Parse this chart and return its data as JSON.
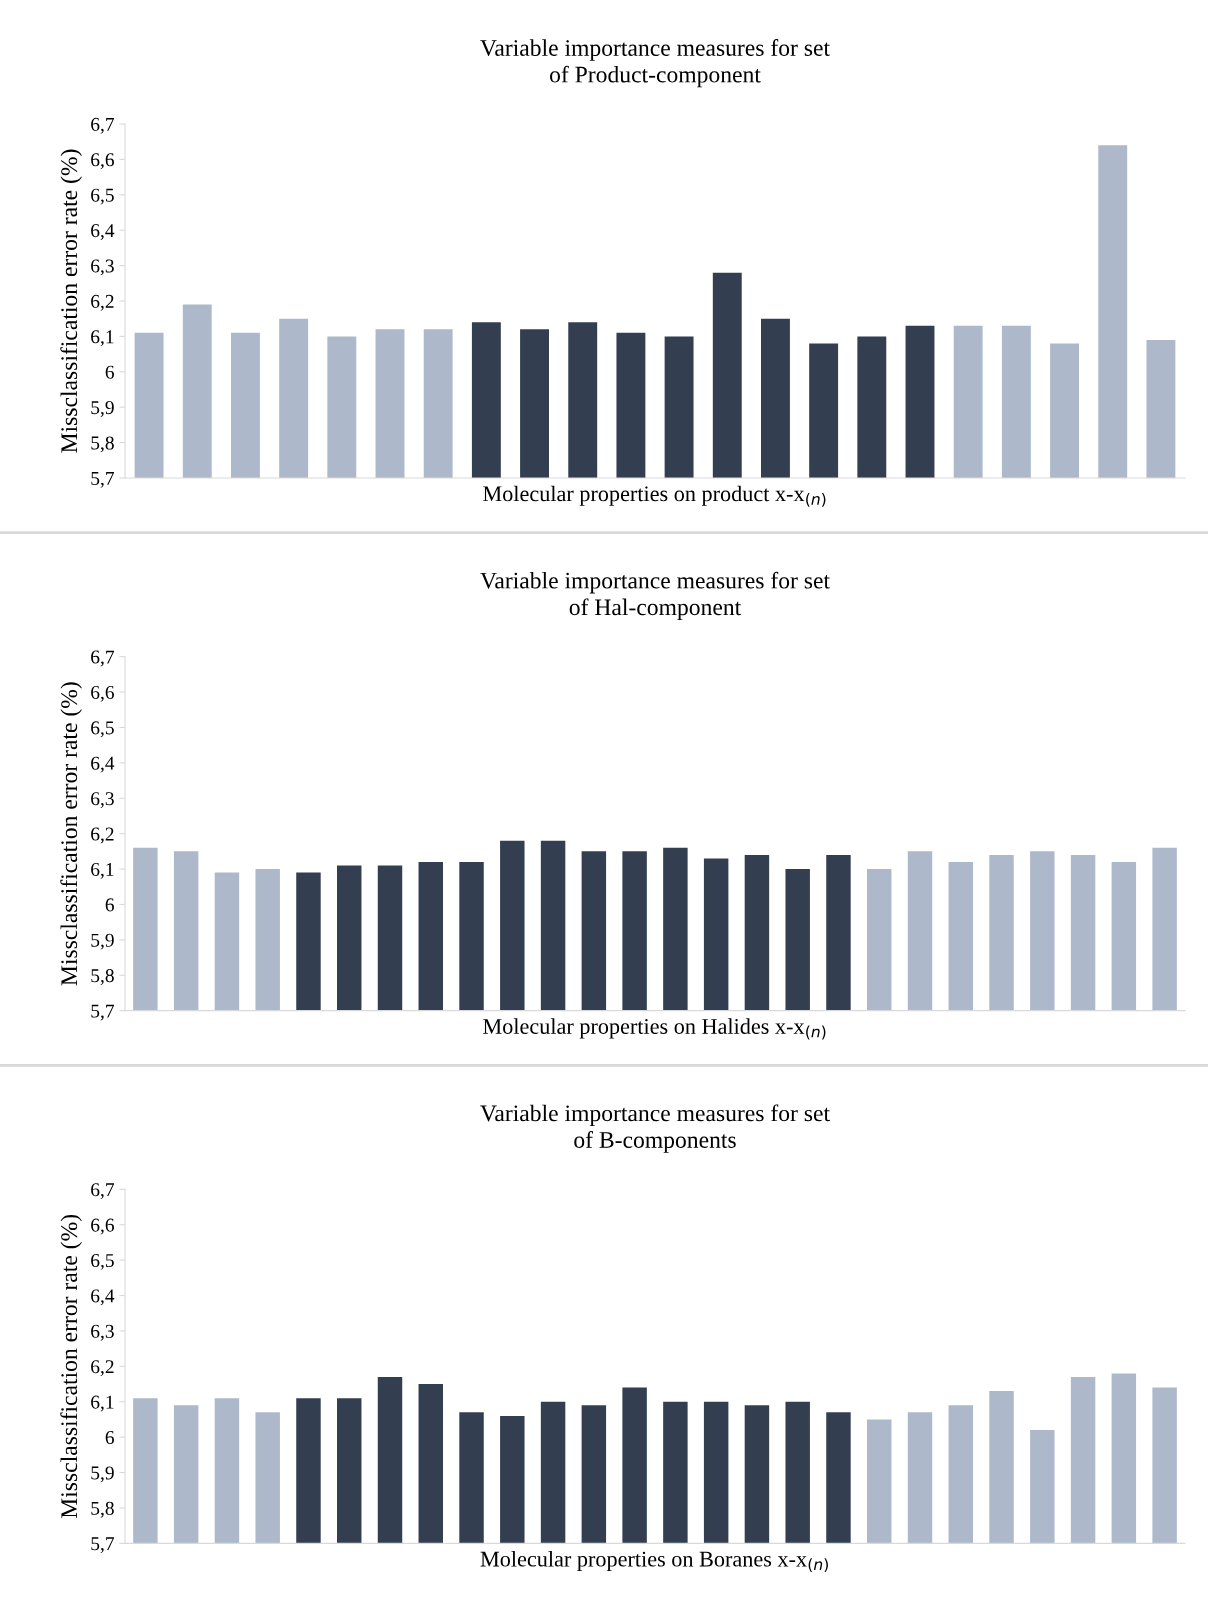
{
  "chart_data": [
    {
      "type": "bar",
      "title": "Variable importance measures for set\nof Product-component",
      "xlabel": "Molecular properties on product x-x$_{(n)}$",
      "ylabel": "Missclassification error rate (%)",
      "categories": [
        null,
        null,
        null,
        null,
        null,
        null,
        null,
        null,
        null,
        null,
        null,
        null,
        null,
        null,
        null,
        null,
        null,
        null,
        null,
        null,
        null,
        null
      ],
      "values": [
        6.11,
        6.19,
        6.11,
        6.15,
        6.1,
        6.12,
        6.12,
        6.14,
        6.12,
        6.14,
        6.11,
        6.1,
        6.28,
        6.15,
        6.08,
        6.1,
        6.13,
        6.13,
        6.13,
        6.08,
        6.64,
        6.09
      ],
      "colors": [
        "#adb9ca",
        "#adb9ca",
        "#adb9ca",
        "#adb9ca",
        "#adb9ca",
        "#adb9ca",
        "#adb9ca",
        "#333f50",
        "#333f50",
        "#333f50",
        "#333f50",
        "#333f50",
        "#333f50",
        "#333f50",
        "#333f50",
        "#333f50",
        "#333f50",
        "#adb9ca",
        "#adb9ca",
        "#adb9ca",
        "#adb9ca",
        "#adb9ca"
      ],
      "ylim": [
        5.7,
        6.7
      ],
      "yticks": [
        {
          "value": 5.7,
          "label": "5,7"
        },
        {
          "value": 5.8,
          "label": "5,8"
        },
        {
          "value": 5.9,
          "label": "5,9"
        },
        {
          "value": 6.0,
          "label": "6"
        },
        {
          "value": 6.1,
          "label": "6,1"
        },
        {
          "value": 6.2,
          "label": "6,2"
        },
        {
          "value": 6.3,
          "label": "6,3"
        },
        {
          "value": 6.4,
          "label": "6,4"
        },
        {
          "value": 6.5,
          "label": "6,5"
        },
        {
          "value": 6.6,
          "label": "6,6"
        },
        {
          "value": 6.7,
          "label": "6,7"
        }
      ],
      "grid": false,
      "legend": false
    },
    {
      "type": "bar",
      "title": "Variable importance measures for set\nof Hal-component",
      "xlabel": "Molecular properties on Halides x-x$_{(n)}$",
      "ylabel": "Missclassification error rate (%)",
      "categories": [
        null,
        null,
        null,
        null,
        null,
        null,
        null,
        null,
        null,
        null,
        null,
        null,
        null,
        null,
        null,
        null,
        null,
        null,
        null,
        null,
        null,
        null,
        null,
        null,
        null,
        null
      ],
      "values": [
        6.16,
        6.15,
        6.09,
        6.1,
        6.09,
        6.11,
        6.11,
        6.12,
        6.12,
        6.18,
        6.18,
        6.15,
        6.15,
        6.16,
        6.13,
        6.14,
        6.1,
        6.14,
        6.1,
        6.15,
        6.12,
        6.14,
        6.15,
        6.14,
        6.12,
        6.16
      ],
      "colors": [
        "#adb9ca",
        "#adb9ca",
        "#adb9ca",
        "#adb9ca",
        "#333f50",
        "#333f50",
        "#333f50",
        "#333f50",
        "#333f50",
        "#333f50",
        "#333f50",
        "#333f50",
        "#333f50",
        "#333f50",
        "#333f50",
        "#333f50",
        "#333f50",
        "#333f50",
        "#adb9ca",
        "#adb9ca",
        "#adb9ca",
        "#adb9ca",
        "#adb9ca",
        "#adb9ca",
        "#adb9ca",
        "#adb9ca"
      ],
      "ylim": [
        5.7,
        6.7
      ],
      "yticks": [
        {
          "value": 5.7,
          "label": "5,7"
        },
        {
          "value": 5.8,
          "label": "5,8"
        },
        {
          "value": 5.9,
          "label": "5,9"
        },
        {
          "value": 6.0,
          "label": "6"
        },
        {
          "value": 6.1,
          "label": "6,1"
        },
        {
          "value": 6.2,
          "label": "6,2"
        },
        {
          "value": 6.3,
          "label": "6,3"
        },
        {
          "value": 6.4,
          "label": "6,4"
        },
        {
          "value": 6.5,
          "label": "6,5"
        },
        {
          "value": 6.6,
          "label": "6,6"
        },
        {
          "value": 6.7,
          "label": "6,7"
        }
      ],
      "grid": false,
      "legend": false
    },
    {
      "type": "bar",
      "title": "Variable importance measures for set\nof B-components",
      "xlabel": "Molecular properties on Boranes x-x$_{(n)}$",
      "ylabel": "Missclassification error rate (%)",
      "categories": [
        null,
        null,
        null,
        null,
        null,
        null,
        null,
        null,
        null,
        null,
        null,
        null,
        null,
        null,
        null,
        null,
        null,
        null,
        null,
        null,
        null,
        null,
        null,
        null,
        null,
        null
      ],
      "values": [
        6.11,
        6.09,
        6.11,
        6.07,
        6.11,
        6.11,
        6.17,
        6.15,
        6.07,
        6.06,
        6.1,
        6.09,
        6.14,
        6.1,
        6.1,
        6.09,
        6.1,
        6.07,
        6.05,
        6.07,
        6.09,
        6.13,
        6.02,
        6.17,
        6.18,
        6.14
      ],
      "colors": [
        "#adb9ca",
        "#adb9ca",
        "#adb9ca",
        "#adb9ca",
        "#333f50",
        "#333f50",
        "#333f50",
        "#333f50",
        "#333f50",
        "#333f50",
        "#333f50",
        "#333f50",
        "#333f50",
        "#333f50",
        "#333f50",
        "#333f50",
        "#333f50",
        "#333f50",
        "#adb9ca",
        "#adb9ca",
        "#adb9ca",
        "#adb9ca",
        "#adb9ca",
        "#adb9ca",
        "#adb9ca",
        "#adb9ca"
      ],
      "ylim": [
        5.7,
        6.7
      ],
      "yticks": [
        {
          "value": 5.7,
          "label": "5,7"
        },
        {
          "value": 5.8,
          "label": "5,8"
        },
        {
          "value": 5.9,
          "label": "5,9"
        },
        {
          "value": 6.0,
          "label": "6"
        },
        {
          "value": 6.1,
          "label": "6,1"
        },
        {
          "value": 6.2,
          "label": "6,2"
        },
        {
          "value": 6.3,
          "label": "6,3"
        },
        {
          "value": 6.4,
          "label": "6,4"
        },
        {
          "value": 6.5,
          "label": "6,5"
        },
        {
          "value": 6.6,
          "label": "6,6"
        },
        {
          "value": 6.7,
          "label": "6,7"
        }
      ],
      "grid": false,
      "legend": false
    }
  ]
}
